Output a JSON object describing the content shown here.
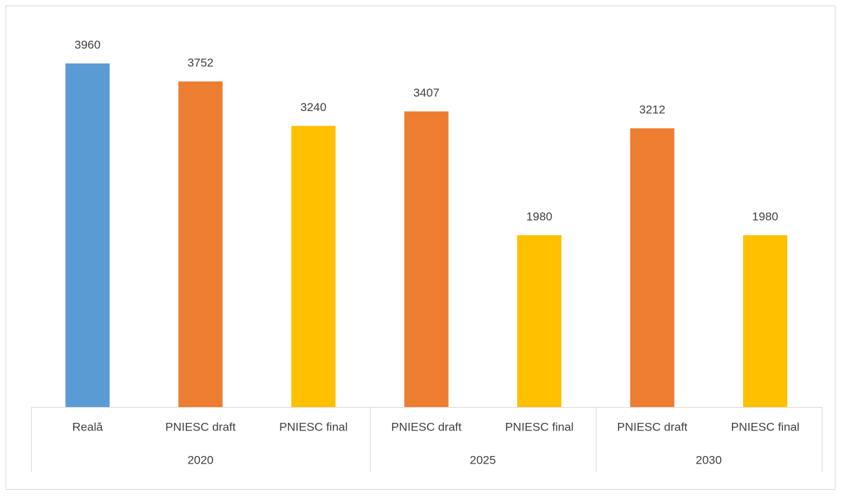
{
  "chart_data": {
    "type": "bar",
    "groups": [
      {
        "label": "2020",
        "categories": [
          "Reală",
          "PNIESC draft",
          "PNIESC final"
        ],
        "values": [
          3960,
          3752,
          3240
        ],
        "colors": [
          "#5b9bd5",
          "#ed7d31",
          "#ffc000"
        ]
      },
      {
        "label": "2025",
        "categories": [
          "PNIESC draft",
          "PNIESC final"
        ],
        "values": [
          3407,
          1980
        ],
        "colors": [
          "#ed7d31",
          "#ffc000"
        ]
      },
      {
        "label": "2030",
        "categories": [
          "PNIESC draft",
          "PNIESC final"
        ],
        "values": [
          3212,
          1980
        ],
        "colors": [
          "#ed7d31",
          "#ffc000"
        ]
      }
    ],
    "ylim": [
      0,
      4500
    ]
  }
}
